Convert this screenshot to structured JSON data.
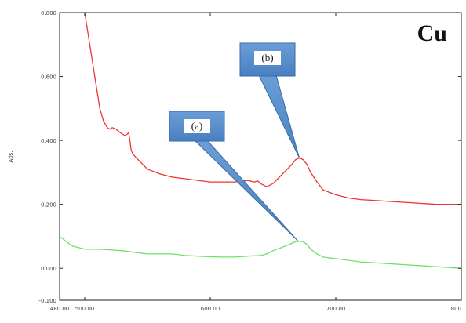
{
  "chart_data": {
    "type": "line",
    "title": "Cu",
    "xlabel": "",
    "ylabel": "Abs.",
    "xlim": [
      480,
      800
    ],
    "ylim": [
      -0.1,
      0.8
    ],
    "x_ticks": [
      480,
      500,
      600,
      700,
      800
    ],
    "x_tick_labels": [
      "480.00",
      "500.00",
      "600.00",
      "700.00",
      "800"
    ],
    "y_ticks": [
      -0.1,
      0.0,
      0.2,
      0.4,
      0.6,
      0.8
    ],
    "y_tick_labels": [
      "-0.100",
      "0.000",
      "0.200",
      "0.400",
      "0.600",
      "0.800"
    ],
    "grid": false,
    "annotations": [
      {
        "label": "(a)",
        "series": 0,
        "target": [
          670,
          0.085
        ]
      },
      {
        "label": "(b)",
        "series": 1,
        "target": [
          671,
          0.345
        ]
      }
    ],
    "series": [
      {
        "name": "",
        "color": "#6ee06a",
        "x": [
          480,
          485,
          490,
          495,
          500,
          510,
          520,
          530,
          540,
          550,
          560,
          570,
          580,
          590,
          600,
          610,
          620,
          630,
          640,
          645,
          650,
          655,
          660,
          665,
          668,
          671,
          674,
          677,
          680,
          685,
          690,
          700,
          720,
          740,
          760,
          780,
          800
        ],
        "y": [
          0.1,
          0.085,
          0.07,
          0.065,
          0.06,
          0.06,
          0.058,
          0.055,
          0.05,
          0.045,
          0.045,
          0.045,
          0.04,
          0.038,
          0.036,
          0.035,
          0.035,
          0.038,
          0.04,
          0.045,
          0.055,
          0.062,
          0.07,
          0.078,
          0.083,
          0.085,
          0.083,
          0.075,
          0.06,
          0.045,
          0.035,
          0.03,
          0.02,
          0.015,
          0.01,
          0.005,
          0.0
        ]
      },
      {
        "name": "",
        "color": "#ee3333",
        "x": [
          500,
          502,
          504,
          506,
          508,
          510,
          512,
          515,
          518,
          520,
          522,
          525,
          528,
          530,
          532,
          534,
          535,
          536,
          537,
          538,
          540,
          545,
          550,
          560,
          570,
          580,
          590,
          600,
          610,
          620,
          630,
          635,
          638,
          640,
          645,
          650,
          655,
          660,
          665,
          668,
          671,
          674,
          677,
          680,
          685,
          690,
          700,
          710,
          720,
          740,
          760,
          780,
          800
        ],
        "y": [
          0.8,
          0.75,
          0.7,
          0.65,
          0.6,
          0.55,
          0.5,
          0.46,
          0.44,
          0.435,
          0.44,
          0.435,
          0.425,
          0.42,
          0.415,
          0.42,
          0.425,
          0.4,
          0.37,
          0.36,
          0.35,
          0.33,
          0.31,
          0.295,
          0.285,
          0.28,
          0.275,
          0.27,
          0.27,
          0.27,
          0.275,
          0.27,
          0.273,
          0.265,
          0.255,
          0.265,
          0.285,
          0.305,
          0.325,
          0.34,
          0.345,
          0.34,
          0.325,
          0.3,
          0.27,
          0.245,
          0.23,
          0.22,
          0.215,
          0.21,
          0.205,
          0.2,
          0.2
        ]
      }
    ]
  }
}
